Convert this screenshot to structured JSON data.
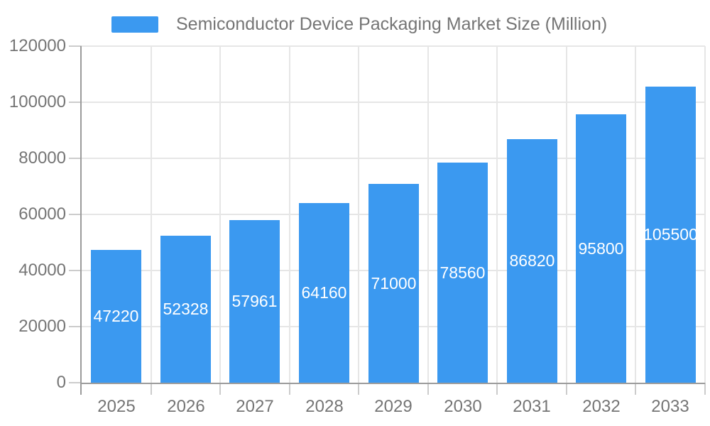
{
  "chart_data": {
    "type": "bar",
    "title": "Semiconductor Device Packaging Market Size (Million)",
    "legend_entries": [
      "Semiconductor Device Packaging Market Size (Million)"
    ],
    "legend_position": "top",
    "categories": [
      "2025",
      "2026",
      "2027",
      "2028",
      "2029",
      "2030",
      "2031",
      "2032",
      "2033"
    ],
    "values": [
      47220,
      52328,
      57961,
      64160,
      71000,
      78560,
      86820,
      95800,
      105500
    ],
    "xlabel": "",
    "ylabel": "",
    "ylim": [
      0,
      120000
    ],
    "yticks": [
      0,
      20000,
      40000,
      60000,
      80000,
      100000,
      120000
    ],
    "grid": true,
    "bar_value_labels_visible": true,
    "colors": {
      "bar": "#3B99F0",
      "bar_label": "#FFFFFF",
      "axis_text": "#757575",
      "legend_text": "#757575",
      "gridline": "#E6E6E6",
      "axis_line": "#9B9B9B",
      "tick": "#CCCCCC",
      "background": "#FFFFFF"
    }
  }
}
